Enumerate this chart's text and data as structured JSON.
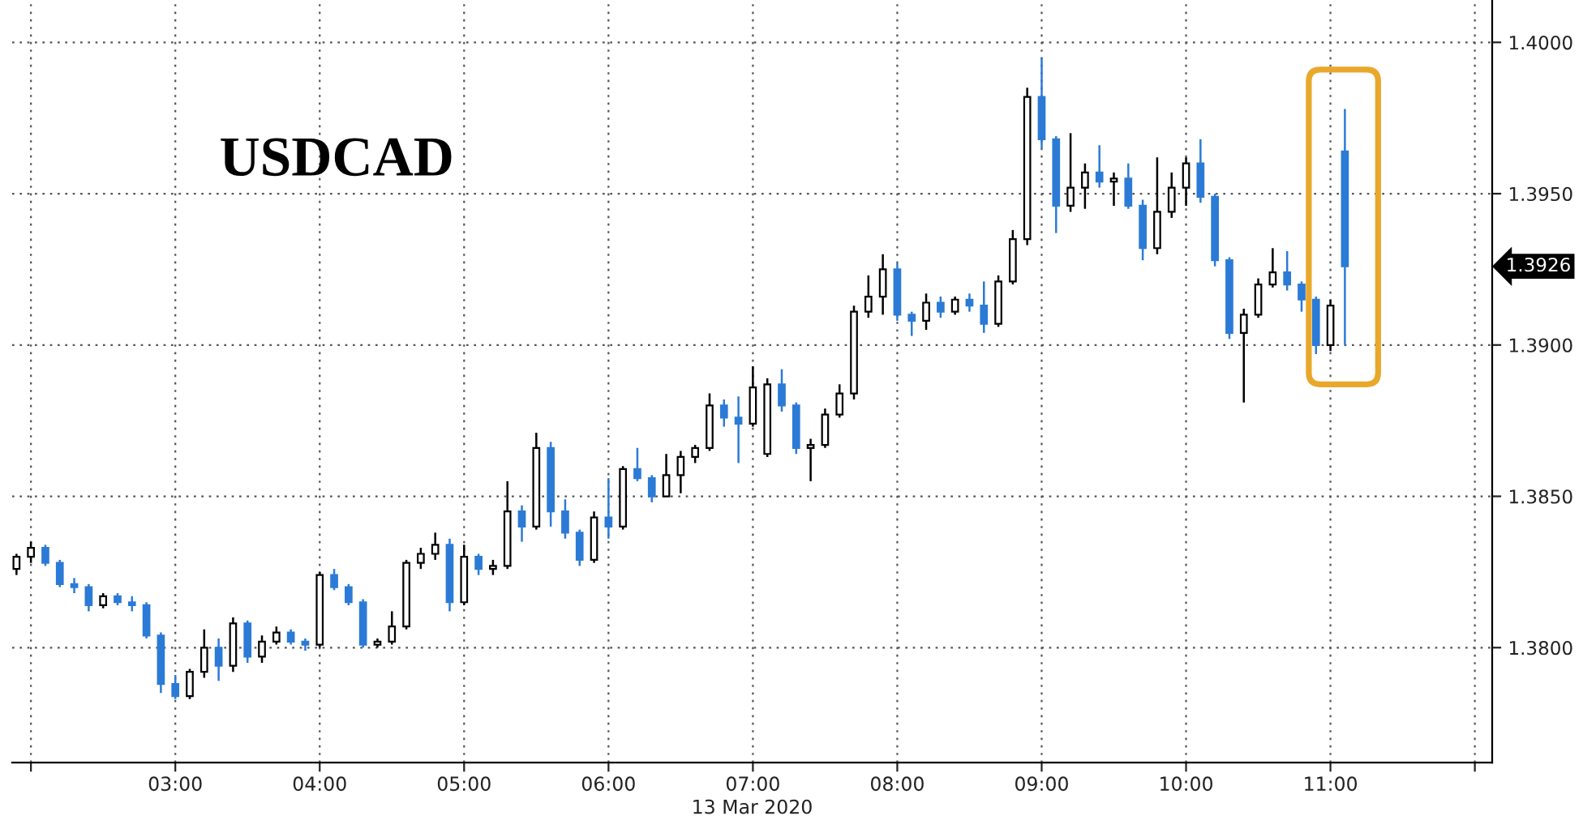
{
  "chart_data": {
    "type": "candlestick",
    "title": "USDCAD",
    "xlabel": "13 Mar 2020",
    "x": [
      1.9,
      2.0,
      2.1,
      2.2,
      2.3,
      2.4,
      2.5,
      2.6,
      2.7,
      2.8,
      2.9,
      3.0,
      3.1,
      3.2,
      3.3,
      3.4,
      3.5,
      3.6,
      3.7,
      3.8,
      3.9,
      4.0,
      4.1,
      4.2,
      4.3,
      4.4,
      4.5,
      4.6,
      4.7,
      4.8,
      4.9,
      5.0,
      5.1,
      5.2,
      5.3,
      5.4,
      5.5,
      5.6,
      5.7,
      5.8,
      5.9,
      6.0,
      6.1,
      6.2,
      6.3,
      6.4,
      6.5,
      6.6,
      6.7,
      6.8,
      6.9,
      7.0,
      7.1,
      7.2,
      7.3,
      7.4,
      7.5,
      7.6,
      7.7,
      7.8,
      7.9,
      8.0,
      8.1,
      8.2,
      8.3,
      8.4,
      8.5,
      8.6,
      8.7,
      8.8,
      8.9,
      9.0,
      9.1,
      9.2,
      9.3,
      9.4,
      9.5,
      9.6,
      9.7,
      9.8,
      9.9,
      10.0,
      10.1,
      10.2,
      10.3,
      10.4,
      10.5,
      10.6,
      10.7,
      10.8,
      10.9,
      11.0,
      11.1
    ],
    "ohlc": [
      [
        1.3826,
        1.3831,
        1.3824,
        1.383
      ],
      [
        1.383,
        1.3835,
        1.3828,
        1.3833
      ],
      [
        1.3833,
        1.3834,
        1.3827,
        1.3828
      ],
      [
        1.3828,
        1.3829,
        1.382,
        1.3821
      ],
      [
        1.3821,
        1.3823,
        1.3818,
        1.382
      ],
      [
        1.382,
        1.3821,
        1.3812,
        1.3814
      ],
      [
        1.3814,
        1.3818,
        1.3813,
        1.3817
      ],
      [
        1.3817,
        1.3818,
        1.3814,
        1.3815
      ],
      [
        1.3815,
        1.3817,
        1.3812,
        1.3814
      ],
      [
        1.3814,
        1.3815,
        1.3803,
        1.3804
      ],
      [
        1.3804,
        1.3805,
        1.3785,
        1.3788
      ],
      [
        1.3788,
        1.3791,
        1.3783,
        1.3784
      ],
      [
        1.3784,
        1.3793,
        1.3783,
        1.3792
      ],
      [
        1.3792,
        1.3806,
        1.379,
        1.38
      ],
      [
        1.38,
        1.3803,
        1.3789,
        1.3794
      ],
      [
        1.3794,
        1.381,
        1.3792,
        1.3808
      ],
      [
        1.3808,
        1.3809,
        1.3795,
        1.3797
      ],
      [
        1.3797,
        1.3804,
        1.3795,
        1.3802
      ],
      [
        1.3802,
        1.3807,
        1.3801,
        1.3805
      ],
      [
        1.3805,
        1.3806,
        1.3801,
        1.3802
      ],
      [
        1.3802,
        1.3803,
        1.3799,
        1.3801
      ],
      [
        1.3801,
        1.3825,
        1.38,
        1.3824
      ],
      [
        1.3824,
        1.3826,
        1.3819,
        1.382
      ],
      [
        1.382,
        1.3821,
        1.3814,
        1.3815
      ],
      [
        1.3815,
        1.3816,
        1.38,
        1.3801
      ],
      [
        1.3801,
        1.3803,
        1.38,
        1.3802
      ],
      [
        1.3802,
        1.3812,
        1.3801,
        1.3807
      ],
      [
        1.3807,
        1.3829,
        1.3806,
        1.3828
      ],
      [
        1.3828,
        1.3833,
        1.3826,
        1.3831
      ],
      [
        1.3831,
        1.3838,
        1.3829,
        1.3834
      ],
      [
        1.3834,
        1.3836,
        1.3812,
        1.3815
      ],
      [
        1.3815,
        1.3834,
        1.3814,
        1.383
      ],
      [
        1.383,
        1.3831,
        1.3824,
        1.3826
      ],
      [
        1.3826,
        1.3829,
        1.3824,
        1.3827
      ],
      [
        1.3827,
        1.3855,
        1.3826,
        1.3845
      ],
      [
        1.3845,
        1.3847,
        1.3835,
        1.384
      ],
      [
        1.384,
        1.3871,
        1.3839,
        1.3866
      ],
      [
        1.3866,
        1.3868,
        1.384,
        1.3845
      ],
      [
        1.3845,
        1.3849,
        1.3836,
        1.3838
      ],
      [
        1.3838,
        1.3839,
        1.3827,
        1.3829
      ],
      [
        1.3829,
        1.3845,
        1.3828,
        1.3843
      ],
      [
        1.3843,
        1.3856,
        1.3836,
        1.384
      ],
      [
        1.384,
        1.386,
        1.3839,
        1.3859
      ],
      [
        1.3859,
        1.3866,
        1.3855,
        1.3856
      ],
      [
        1.3856,
        1.3857,
        1.3848,
        1.385
      ],
      [
        1.385,
        1.3864,
        1.385,
        1.3857
      ],
      [
        1.3857,
        1.3865,
        1.3851,
        1.3863
      ],
      [
        1.3863,
        1.3867,
        1.3861,
        1.3866
      ],
      [
        1.3866,
        1.3884,
        1.3865,
        1.388
      ],
      [
        1.388,
        1.3882,
        1.3873,
        1.3876
      ],
      [
        1.3876,
        1.3883,
        1.3861,
        1.3874
      ],
      [
        1.3874,
        1.3893,
        1.3873,
        1.3886
      ],
      [
        1.3864,
        1.3889,
        1.3863,
        1.3887
      ],
      [
        1.3887,
        1.3892,
        1.3878,
        1.388
      ],
      [
        1.388,
        1.3881,
        1.3864,
        1.3866
      ],
      [
        1.3866,
        1.3869,
        1.3855,
        1.3867
      ],
      [
        1.3867,
        1.3879,
        1.3866,
        1.3877
      ],
      [
        1.3877,
        1.3887,
        1.3876,
        1.3884
      ],
      [
        1.3884,
        1.3913,
        1.3882,
        1.3911
      ],
      [
        1.3911,
        1.3923,
        1.3909,
        1.3916
      ],
      [
        1.3916,
        1.393,
        1.391,
        1.3925
      ],
      [
        1.3925,
        1.3927,
        1.3908,
        1.391
      ],
      [
        1.391,
        1.3911,
        1.3903,
        1.3908
      ],
      [
        1.3908,
        1.3917,
        1.3905,
        1.3914
      ],
      [
        1.3914,
        1.3916,
        1.3909,
        1.3911
      ],
      [
        1.3911,
        1.3916,
        1.391,
        1.3915
      ],
      [
        1.3915,
        1.3917,
        1.3911,
        1.3913
      ],
      [
        1.3913,
        1.3921,
        1.3904,
        1.3907
      ],
      [
        1.3907,
        1.3923,
        1.3906,
        1.3921
      ],
      [
        1.3921,
        1.3938,
        1.392,
        1.3935
      ],
      [
        1.3935,
        1.3985,
        1.3933,
        1.3982
      ],
      [
        1.3982,
        1.3995,
        1.3965,
        1.3968
      ],
      [
        1.3968,
        1.3969,
        1.3937,
        1.3946
      ],
      [
        1.3946,
        1.397,
        1.3944,
        1.3952
      ],
      [
        1.3952,
        1.396,
        1.3945,
        1.3957
      ],
      [
        1.3957,
        1.3966,
        1.3952,
        1.3954
      ],
      [
        1.3954,
        1.3957,
        1.3946,
        1.3955
      ],
      [
        1.3955,
        1.396,
        1.3945,
        1.3946
      ],
      [
        1.3946,
        1.3948,
        1.3928,
        1.3932
      ],
      [
        1.3932,
        1.3962,
        1.393,
        1.3944
      ],
      [
        1.3944,
        1.3957,
        1.3942,
        1.3952
      ],
      [
        1.3952,
        1.3962,
        1.3946,
        1.396
      ],
      [
        1.396,
        1.3968,
        1.3947,
        1.3949
      ],
      [
        1.3949,
        1.395,
        1.3926,
        1.3928
      ],
      [
        1.3928,
        1.3929,
        1.3902,
        1.3904
      ],
      [
        1.3904,
        1.3912,
        1.3881,
        1.391
      ],
      [
        1.391,
        1.3922,
        1.3909,
        1.392
      ],
      [
        1.392,
        1.3932,
        1.3919,
        1.3924
      ],
      [
        1.3924,
        1.3931,
        1.3918,
        1.392
      ],
      [
        1.392,
        1.3921,
        1.3911,
        1.3915
      ],
      [
        1.3915,
        1.3916,
        1.3897,
        1.39
      ],
      [
        1.39,
        1.3915,
        1.3898,
        1.3913
      ],
      [
        1.3964,
        1.3978,
        1.39,
        1.3926
      ]
    ],
    "colors": [
      "#000000",
      "#000000",
      "#2b7bd6",
      "#2b7bd6",
      "#2b7bd6",
      "#2b7bd6",
      "#000000",
      "#2b7bd6",
      "#2b7bd6",
      "#2b7bd6",
      "#2b7bd6",
      "#2b7bd6",
      "#000000",
      "#000000",
      "#2b7bd6",
      "#000000",
      "#2b7bd6",
      "#000000",
      "#000000",
      "#2b7bd6",
      "#2b7bd6",
      "#000000",
      "#2b7bd6",
      "#2b7bd6",
      "#2b7bd6",
      "#000000",
      "#000000",
      "#000000",
      "#000000",
      "#000000",
      "#2b7bd6",
      "#000000",
      "#2b7bd6",
      "#000000",
      "#000000",
      "#2b7bd6",
      "#000000",
      "#2b7bd6",
      "#2b7bd6",
      "#2b7bd6",
      "#000000",
      "#2b7bd6",
      "#000000",
      "#2b7bd6",
      "#2b7bd6",
      "#000000",
      "#000000",
      "#000000",
      "#000000",
      "#2b7bd6",
      "#2b7bd6",
      "#000000",
      "#000000",
      "#2b7bd6",
      "#2b7bd6",
      "#000000",
      "#000000",
      "#000000",
      "#000000",
      "#000000",
      "#000000",
      "#2b7bd6",
      "#2b7bd6",
      "#000000",
      "#2b7bd6",
      "#000000",
      "#2b7bd6",
      "#2b7bd6",
      "#000000",
      "#000000",
      "#000000",
      "#2b7bd6",
      "#2b7bd6",
      "#000000",
      "#000000",
      "#2b7bd6",
      "#000000",
      "#2b7bd6",
      "#2b7bd6",
      "#000000",
      "#000000",
      "#000000",
      "#2b7bd6",
      "#2b7bd6",
      "#2b7bd6",
      "#000000",
      "#000000",
      "#000000",
      "#2b7bd6",
      "#2b7bd6",
      "#2b7bd6",
      "#000000",
      "#2b7bd6"
    ],
    "xlim": [
      1.87,
      12.12
    ],
    "xticks": [
      {
        "value": 2,
        "label": null
      },
      {
        "value": 3,
        "label": "03:00"
      },
      {
        "value": 4,
        "label": "04:00"
      },
      {
        "value": 5,
        "label": "05:00"
      },
      {
        "value": 6,
        "label": "06:00"
      },
      {
        "value": 7,
        "label": "07:00"
      },
      {
        "value": 8,
        "label": "08:00"
      },
      {
        "value": 9,
        "label": "09:00"
      },
      {
        "value": 10,
        "label": "10:00"
      },
      {
        "value": 11,
        "label": "11:00"
      },
      {
        "value": 12,
        "label": null
      }
    ],
    "ylim": [
      1.3762,
      1.4014
    ],
    "yticks": [
      {
        "value": 1.38,
        "label": "1.3800"
      },
      {
        "value": 1.385,
        "label": "1.3850"
      },
      {
        "value": 1.39,
        "label": "1.3900"
      },
      {
        "value": 1.395,
        "label": "1.3950"
      },
      {
        "value": 1.4,
        "label": "1.4000"
      }
    ],
    "grid": true,
    "annotations": [
      "1.3926"
    ]
  }
}
